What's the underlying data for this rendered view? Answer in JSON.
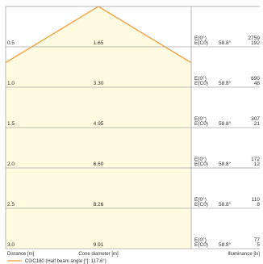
{
  "chart_data": {
    "type": "area",
    "title": "",
    "beam_angle_deg": 117.6,
    "distances": [
      {
        "distance": "0.5",
        "diameter": "1.65",
        "e0": "2759",
        "ec0": "192",
        "angle": "58.8°"
      },
      {
        "distance": "1.0",
        "diameter": "3.30",
        "e0": "690",
        "ec0": "48",
        "angle": "58.8°"
      },
      {
        "distance": "1.5",
        "diameter": "4.95",
        "e0": "307",
        "ec0": "21",
        "angle": "58.8°"
      },
      {
        "distance": "2.0",
        "diameter": "6.60",
        "e0": "172",
        "ec0": "12",
        "angle": "58.8°"
      },
      {
        "distance": "2.5",
        "diameter": "8.26",
        "e0": "110",
        "ec0": "8",
        "angle": "58.8°"
      },
      {
        "distance": "3.0",
        "diameter": "9.91",
        "e0": "77",
        "ec0": "5",
        "angle": "58.8°"
      }
    ],
    "row_labels": {
      "e0": "E(0°)",
      "ec0": "E(C0)"
    },
    "axis": {
      "distance_label": "Distance [m]",
      "diameter_label": "Cone diameter [m]",
      "illuminance_label": "Illuminance [lx]"
    },
    "legend": {
      "label": "C0/C180 (Half beam angle [°]: 117.6°)"
    },
    "colors": {
      "cone_line": "#f39c34",
      "cone_fill": "#fffbe0",
      "grid": "#a8a8a8",
      "text": "#333333"
    }
  }
}
